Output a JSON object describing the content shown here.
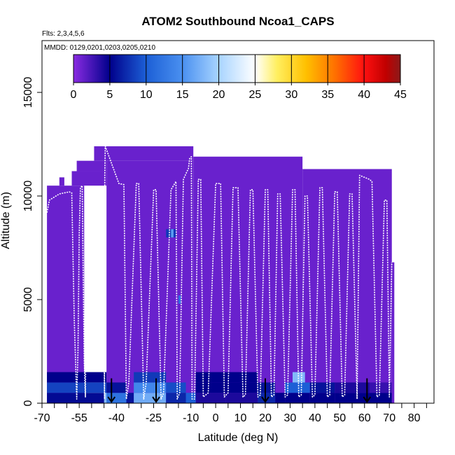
{
  "chart_data": {
    "type": "heatmap",
    "title": "ATOM2 Southbound Ncoa1_CAPS",
    "subtitle_lines": [
      "Flts: 2,3,4,5,6",
      "MMDD: 0129,0201,0203,0205,0210"
    ],
    "xlabel": "Latitude (deg N)",
    "ylabel": "Altitude (m)",
    "xlim": [
      -70,
      88
    ],
    "ylim": [
      0,
      17500
    ],
    "x_tick_labels": [
      -70,
      -55,
      -40,
      -25,
      -10,
      0,
      10,
      20,
      30,
      40,
      50,
      60,
      70,
      80
    ],
    "y_tick_labels": [
      0,
      5000,
      10000,
      15000
    ],
    "colorbar": {
      "ticks": [
        0,
        5,
        10,
        15,
        20,
        25,
        30,
        35,
        40,
        45
      ],
      "range": [
        0,
        45
      ],
      "stops": [
        {
          "v": 0,
          "color": "#8a2be2"
        },
        {
          "v": 5,
          "color": "#00008b"
        },
        {
          "v": 10,
          "color": "#1c5fd6"
        },
        {
          "v": 15,
          "color": "#4a90f0"
        },
        {
          "v": 20,
          "color": "#a8d4ff"
        },
        {
          "v": 25,
          "color": "#ffffff"
        },
        {
          "v": 28,
          "color": "#ffef60"
        },
        {
          "v": 32,
          "color": "#ffc000"
        },
        {
          "v": 36,
          "color": "#ff7000"
        },
        {
          "v": 40,
          "color": "#ff1010"
        },
        {
          "v": 43,
          "color": "#c00000"
        },
        {
          "v": 45,
          "color": "#8b1a1a"
        }
      ]
    },
    "background_value": 1.2,
    "domain_blocks": [
      {
        "lat": [
          -68,
          -53
        ],
        "alt": [
          0,
          10500
        ]
      },
      {
        "lat": [
          -63,
          -61
        ],
        "alt": [
          10500,
          10900
        ]
      },
      {
        "lat": [
          -58,
          -44
        ],
        "alt": [
          10500,
          11200
        ]
      },
      {
        "lat": [
          -56,
          -44
        ],
        "alt": [
          11200,
          11700
        ]
      },
      {
        "lat": [
          -44,
          -9
        ],
        "alt": [
          0,
          11700
        ]
      },
      {
        "lat": [
          -49,
          -9
        ],
        "alt": [
          11700,
          12400
        ]
      },
      {
        "lat": [
          -9,
          35
        ],
        "alt": [
          0,
          11900
        ]
      },
      {
        "lat": [
          35,
          71
        ],
        "alt": [
          0,
          11300
        ]
      },
      {
        "lat": [
          71,
          72
        ],
        "alt": [
          0,
          6800
        ]
      }
    ],
    "cells": [
      {
        "lat": [
          -68,
          -44
        ],
        "alt": [
          0,
          500
        ],
        "v": 5.5
      },
      {
        "lat": [
          -68,
          -44
        ],
        "alt": [
          500,
          1000
        ],
        "v": 8.5
      },
      {
        "lat": [
          -68,
          -44
        ],
        "alt": [
          1000,
          1500
        ],
        "v": 5
      },
      {
        "lat": [
          -45,
          -43
        ],
        "alt": [
          0,
          500
        ],
        "v": 18
      },
      {
        "lat": [
          -44,
          -36
        ],
        "alt": [
          0,
          500
        ],
        "v": 12
      },
      {
        "lat": [
          -44,
          -36
        ],
        "alt": [
          500,
          1000
        ],
        "v": 6
      },
      {
        "lat": [
          -36,
          -33
        ],
        "alt": [
          0,
          500
        ],
        "v": 6
      },
      {
        "lat": [
          -33,
          -20
        ],
        "alt": [
          0,
          500
        ],
        "v": 17
      },
      {
        "lat": [
          -33,
          -20
        ],
        "alt": [
          500,
          1000
        ],
        "v": 14
      },
      {
        "lat": [
          -33,
          -20
        ],
        "alt": [
          1000,
          1500
        ],
        "v": 8
      },
      {
        "lat": [
          -20,
          -12
        ],
        "alt": [
          0,
          500
        ],
        "v": 7
      },
      {
        "lat": [
          -20,
          -12
        ],
        "alt": [
          500,
          1000
        ],
        "v": 9
      },
      {
        "lat": [
          -12,
          -8
        ],
        "alt": [
          0,
          500
        ],
        "v": 10
      },
      {
        "lat": [
          -8,
          4
        ],
        "alt": [
          0,
          500
        ],
        "v": 4
      },
      {
        "lat": [
          -8,
          4
        ],
        "alt": [
          500,
          1000
        ],
        "v": 5
      },
      {
        "lat": [
          -8,
          4
        ],
        "alt": [
          1000,
          1500
        ],
        "v": 5
      },
      {
        "lat": [
          4,
          17
        ],
        "alt": [
          0,
          500
        ],
        "v": 4
      },
      {
        "lat": [
          4,
          17
        ],
        "alt": [
          500,
          1000
        ],
        "v": 5
      },
      {
        "lat": [
          4,
          17
        ],
        "alt": [
          1000,
          1500
        ],
        "v": 5
      },
      {
        "lat": [
          17,
          24
        ],
        "alt": [
          0,
          500
        ],
        "v": 7
      },
      {
        "lat": [
          17,
          24
        ],
        "alt": [
          500,
          1000
        ],
        "v": 6
      },
      {
        "lat": [
          24,
          28
        ],
        "alt": [
          0,
          500
        ],
        "v": 5
      },
      {
        "lat": [
          28,
          38
        ],
        "alt": [
          0,
          500
        ],
        "v": 5
      },
      {
        "lat": [
          28,
          38
        ],
        "alt": [
          500,
          1000
        ],
        "v": 10
      },
      {
        "lat": [
          31,
          36
        ],
        "alt": [
          1000,
          1500
        ],
        "v": 18
      },
      {
        "lat": [
          38,
          48
        ],
        "alt": [
          0,
          500
        ],
        "v": 5
      },
      {
        "lat": [
          38,
          48
        ],
        "alt": [
          500,
          1000
        ],
        "v": 6
      },
      {
        "lat": [
          48,
          62
        ],
        "alt": [
          0,
          500
        ],
        "v": 5
      },
      {
        "lat": [
          48,
          62
        ],
        "alt": [
          500,
          1000
        ],
        "v": 4
      },
      {
        "lat": [
          62,
          71
        ],
        "alt": [
          0,
          500
        ],
        "v": 5
      },
      {
        "lat": [
          62,
          71
        ],
        "alt": [
          500,
          1000
        ],
        "v": 3
      },
      {
        "lat": [
          -20,
          -16
        ],
        "alt": [
          8000,
          8400
        ],
        "v": 8
      },
      {
        "lat": [
          -18,
          -17
        ],
        "alt": [
          8000,
          8400
        ],
        "v": 16
      },
      {
        "lat": [
          -15,
          -14
        ],
        "alt": [
          4800,
          5200
        ],
        "v": 12
      }
    ],
    "flight_track": [
      [
        -68,
        9200
      ],
      [
        -67,
        9800
      ],
      [
        -63,
        10100
      ],
      [
        -59,
        10200
      ],
      [
        -58,
        10150
      ],
      [
        -57,
        4000
      ],
      [
        -56,
        200
      ],
      [
        -55.5,
        2500
      ],
      [
        -55,
        8200
      ],
      [
        -54.5,
        10400
      ],
      [
        -53.8,
        10500
      ],
      [
        -53,
        2000
      ],
      [
        -52.5,
        300
      ],
      [
        -52,
        6800
      ],
      [
        -51.5,
        8700
      ],
      [
        -46,
        8900
      ],
      [
        -45.5,
        8900
      ],
      [
        -45,
        3000
      ],
      [
        -44.8,
        200
      ],
      [
        -44.7,
        11000
      ],
      [
        -44.5,
        12400
      ],
      [
        -39,
        10600
      ],
      [
        -37,
        10550
      ],
      [
        -36,
        200
      ],
      [
        -35,
        1000
      ],
      [
        -32,
        10600
      ],
      [
        -31,
        10600
      ],
      [
        -29,
        200
      ],
      [
        -28,
        1000
      ],
      [
        -25,
        10300
      ],
      [
        -24,
        10300
      ],
      [
        -22,
        200
      ],
      [
        -21,
        500
      ],
      [
        -18,
        10300
      ],
      [
        -16,
        10700
      ],
      [
        -15.5,
        200
      ],
      [
        -14.5,
        500
      ],
      [
        -13,
        10800
      ],
      [
        -11.5,
        11200
      ],
      [
        -11,
        11300
      ],
      [
        -10.5,
        11800
      ],
      [
        -9.8,
        11900
      ],
      [
        -9.5,
        200
      ],
      [
        -8.5,
        200
      ],
      [
        -7,
        10800
      ],
      [
        -6,
        10800
      ],
      [
        -5,
        300
      ],
      [
        -3,
        500
      ],
      [
        0,
        10600
      ],
      [
        2,
        10600
      ],
      [
        3.5,
        300
      ],
      [
        5,
        500
      ],
      [
        7,
        10400
      ],
      [
        9,
        10400
      ],
      [
        11,
        300
      ],
      [
        12,
        400
      ],
      [
        14,
        10300
      ],
      [
        15,
        10300
      ],
      [
        17,
        300
      ],
      [
        18,
        400
      ],
      [
        20,
        10300
      ],
      [
        21,
        10300
      ],
      [
        22.5,
        300
      ],
      [
        23.5,
        400
      ],
      [
        25,
        10100
      ],
      [
        26,
        10100
      ],
      [
        28,
        300
      ],
      [
        29,
        400
      ],
      [
        31,
        10300
      ],
      [
        32,
        10300
      ],
      [
        33.5,
        300
      ],
      [
        34.5,
        400
      ],
      [
        36,
        10000
      ],
      [
        37,
        10000
      ],
      [
        39,
        300
      ],
      [
        40,
        400
      ],
      [
        42,
        10400
      ],
      [
        43,
        10400
      ],
      [
        45,
        300
      ],
      [
        46,
        400
      ],
      [
        48,
        10200
      ],
      [
        49,
        10200
      ],
      [
        51,
        300
      ],
      [
        52,
        400
      ],
      [
        54,
        10100
      ],
      [
        55,
        10100
      ],
      [
        57,
        200
      ],
      [
        58,
        11000
      ],
      [
        62,
        10800
      ],
      [
        63,
        10700
      ],
      [
        65,
        300
      ],
      [
        66,
        400
      ],
      [
        68,
        9800
      ],
      [
        69,
        9800
      ],
      [
        70,
        300
      ],
      [
        71,
        6800
      ]
    ],
    "flight_markers_lat": [
      -42,
      -24,
      20,
      61
    ]
  }
}
